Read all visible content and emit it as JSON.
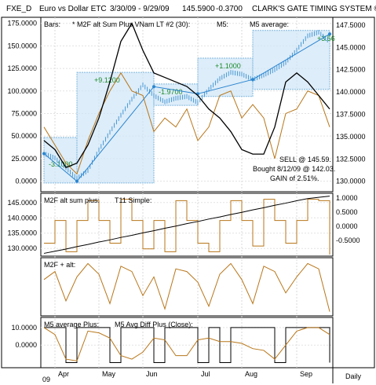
{
  "header": {
    "symbol": "FXE_D",
    "name": "Euro vs Dollar ETC",
    "date_range": "3/30/09 - 9/29/09",
    "price": "145.5900",
    "change": "-0.3700",
    "system": "CLARK'S GATE TIMING SYSTEM ©"
  },
  "colors": {
    "price_bars": "#3a8fd0",
    "oscillator": "#b8761a",
    "average": "#000000",
    "box_fill": "#cfe6f7",
    "box_stroke": "#7fb6de",
    "trade_line": "#2b85d0",
    "gain_label": "#1a8a2a"
  },
  "chart_data": [
    {
      "type": "line",
      "panel": "price",
      "legend": [
        "Bars:",
        "* M2F alt Sum Plus VNam LT #2 (30):",
        "M5:",
        "M5 average:"
      ],
      "x": [
        "3/30/09",
        "4/06/09",
        "4/13/09",
        "4/20/09",
        "4/27/09",
        "5/04/09",
        "5/11/09",
        "5/18/09",
        "5/25/09",
        "6/01/09",
        "6/08/09",
        "6/15/09",
        "6/22/09",
        "6/29/09",
        "7/06/09",
        "7/13/09",
        "7/20/09",
        "7/27/09",
        "8/03/09",
        "8/10/09",
        "8/17/09",
        "8/24/09",
        "8/31/09",
        "9/07/09",
        "9/14/09",
        "9/21/09",
        "9/29/09"
      ],
      "left_axis": {
        "ticks": [
          "175.0000",
          "150.0000",
          "125.0000",
          "100.0000",
          "75.0000",
          "50.0000",
          "25.0000",
          "0.0000"
        ],
        "ylim": [
          -10,
          180
        ]
      },
      "right_axis": {
        "ticks": [
          "147.5000",
          "145.0000",
          "142.5000",
          "140.0000",
          "137.5000",
          "135.0000",
          "132.5000",
          "130.0000"
        ],
        "ylim": [
          129,
          148.2
        ]
      },
      "series": [
        {
          "name": "Bars:",
          "axis": "right",
          "values": [
            133.1,
            132.6,
            131.5,
            130.3,
            131.2,
            133.5,
            135.5,
            137.4,
            139.2,
            140.8,
            139.6,
            138.9,
            139.3,
            139.5,
            138.8,
            140.3,
            141.5,
            142.2,
            142.0,
            141.4,
            141.9,
            142.5,
            143.3,
            144.7,
            146.3,
            146.7,
            145.6
          ]
        },
        {
          "name": "M5:",
          "axis": "left",
          "values": [
            60,
            40,
            20,
            8,
            45,
            75,
            100,
            120,
            100,
            95,
            55,
            70,
            60,
            80,
            45,
            60,
            95,
            100,
            70,
            85,
            70,
            25,
            75,
            80,
            100,
            95,
            60
          ]
        },
        {
          "name": "M5 average:",
          "axis": "left",
          "values": [
            45,
            35,
            15,
            20,
            40,
            70,
            110,
            155,
            175,
            145,
            120,
            115,
            110,
            105,
            95,
            80,
            70,
            55,
            35,
            30,
            30,
            60,
            110,
            120,
            110,
            95,
            80
          ]
        }
      ],
      "trade_boxes": [
        {
          "from": "3/30/09",
          "to": "4/20/09",
          "low": 129.8,
          "high": 134.9,
          "label": "-3.1000"
        },
        {
          "from": "4/20/09",
          "to": "6/08/09",
          "low": 129.8,
          "high": 142.2,
          "label": "+9.1200"
        },
        {
          "from": "6/08/09",
          "to": "7/06/09",
          "low": 138.5,
          "high": 140.9,
          "label": "-1.9700"
        },
        {
          "from": "7/06/09",
          "to": "8/10/09",
          "low": 139.5,
          "high": 143.8,
          "label": "+1.1000"
        },
        {
          "from": "8/10/09",
          "to": "9/29/09",
          "low": 140.3,
          "high": 146.9,
          "label": "+3.56"
        }
      ],
      "trade_line": {
        "x": [
          "3/30/09",
          "4/20/09",
          "6/08/09",
          "7/06/09",
          "8/10/09",
          "9/29/09"
        ],
        "values": [
          133.1,
          130.0,
          140.6,
          139.8,
          141.4,
          146.5
        ]
      },
      "note": [
        "SELL @ 145.59.",
        "Bought 8/12/09 @ 142.03.",
        "GAIN of 2.51%."
      ]
    },
    {
      "type": "line",
      "panel": "m2f_alt_sum_plus",
      "legend": [
        "M2F alt sum plus:",
        "T11 Simple:"
      ],
      "left_axis": {
        "ticks": [
          "145.0000",
          "140.0000",
          "135.0000",
          "130.0000"
        ],
        "ylim": [
          128,
          147
        ]
      },
      "right_axis": {
        "ticks": [
          "1.0000",
          "0.5000",
          "0.0000",
          "-0.5000"
        ],
        "ylim": [
          -1,
          1.05
        ]
      },
      "series": [
        {
          "name": "M2F alt sum plus:",
          "axis": "right",
          "values": [
            -0.6,
            0.2,
            -0.9,
            0.2,
            0.9,
            0.2,
            -0.6,
            0.95,
            0.2,
            -0.8,
            0.2,
            -0.9,
            0.9,
            0.2,
            -0.6,
            -0.9,
            0.2,
            0.9,
            0.2,
            -0.7,
            0.95,
            0.2,
            -0.6,
            0.2,
            0.95,
            0.9,
            -1.0
          ]
        },
        {
          "name": "T11 Simple:",
          "axis": "left",
          "values": [
            128.4,
            129.1,
            129.8,
            130.6,
            131.3,
            132.1,
            132.8,
            133.6,
            134.3,
            135.1,
            135.8,
            136.6,
            137.3,
            138.1,
            138.8,
            139.6,
            140.3,
            141.1,
            141.8,
            142.6,
            143.3,
            144.1,
            144.8,
            145.6,
            146.3,
            146.7,
            147.1
          ]
        }
      ]
    },
    {
      "type": "line",
      "panel": "m2f_plus_alt",
      "legend": [
        "M2F + alt:"
      ],
      "series": [
        {
          "name": "M2F + alt:",
          "values": [
            0.3,
            0.6,
            -0.5,
            0.4,
            0.9,
            0.5,
            -0.6,
            0.8,
            0.6,
            -0.3,
            0.4,
            -0.8,
            0.7,
            0.6,
            0.2,
            -0.7,
            0.5,
            0.9,
            0.3,
            -0.6,
            0.8,
            0.6,
            -0.2,
            0.4,
            0.9,
            0.7,
            -0.9
          ]
        }
      ]
    },
    {
      "type": "line",
      "panel": "m5_average_plus",
      "legend": [
        "M5 average Plus:",
        "M5 Avg Diff Plus (Close):"
      ],
      "left_axis": {
        "ticks": [
          "10.0000",
          "0.0000"
        ],
        "ylim": [
          -12,
          14
        ]
      },
      "series": [
        {
          "name": "M5 average Plus:",
          "values": [
            10,
            10,
            -10,
            10,
            10,
            10,
            -10,
            10,
            10,
            10,
            -10,
            10,
            10,
            10,
            -10,
            10,
            -10,
            10,
            10,
            10,
            10,
            -10,
            10,
            10,
            10,
            10,
            -10
          ]
        },
        {
          "name": "M5 Avg Diff Plus (Close):",
          "values": [
            10,
            6,
            -8,
            -9,
            8,
            7,
            4,
            -6,
            -8,
            -4,
            4,
            3,
            -6,
            -6,
            3,
            4,
            2,
            2,
            1,
            -2,
            -3,
            -8,
            0,
            8,
            10,
            10,
            6
          ]
        }
      ],
      "x_ticks": [
        "Apr",
        "May",
        "Jun",
        "Jul",
        "Aug",
        "Sep"
      ],
      "x_sub": "09",
      "period": "Daily"
    }
  ]
}
